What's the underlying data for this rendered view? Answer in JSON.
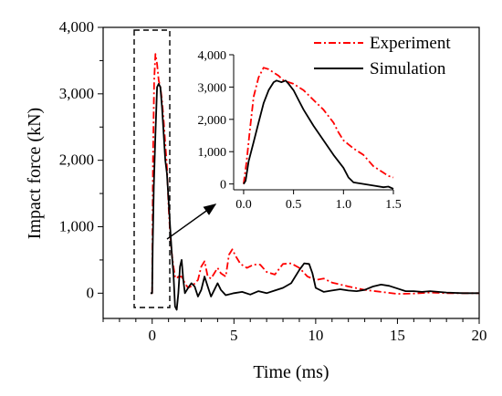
{
  "chart_data": [
    {
      "type": "line",
      "xlabel": "Time (ms)",
      "ylabel": "Impact force (kN)",
      "xlim": [
        -3,
        20
      ],
      "ylim": [
        -380,
        4000
      ],
      "x_ticks": [
        0,
        5,
        10,
        15,
        20
      ],
      "x_tick_labels": [
        "0",
        "5",
        "10",
        "15",
        "20"
      ],
      "y_ticks": [
        0,
        1000,
        2000,
        3000,
        4000
      ],
      "y_tick_labels": [
        "0",
        "1,000",
        "2,000",
        "3,000",
        "4,000"
      ],
      "grid": false,
      "legend_position": "top-right",
      "series": [
        {
          "name": "Experiment",
          "color": "#ff0000",
          "style": "dash-dot",
          "points": [
            [
              -0.05,
              0
            ],
            [
              0.0,
              0
            ],
            [
              0.05,
              2000
            ],
            [
              0.12,
              3200
            ],
            [
              0.2,
              3600
            ],
            [
              0.3,
              3450
            ],
            [
              0.4,
              3200
            ],
            [
              0.5,
              3100
            ],
            [
              0.6,
              2900
            ],
            [
              0.7,
              2600
            ],
            [
              0.8,
              2250
            ],
            [
              0.9,
              1900
            ],
            [
              1.0,
              1300
            ],
            [
              1.1,
              900
            ],
            [
              1.2,
              600
            ],
            [
              1.3,
              400
            ],
            [
              1.4,
              250
            ],
            [
              1.5,
              220
            ],
            [
              1.6,
              250
            ],
            [
              1.8,
              250
            ],
            [
              2.0,
              150
            ],
            [
              2.2,
              80
            ],
            [
              2.5,
              120
            ],
            [
              2.8,
              200
            ],
            [
              3.0,
              400
            ],
            [
              3.2,
              480
            ],
            [
              3.4,
              250
            ],
            [
              3.6,
              220
            ],
            [
              3.8,
              300
            ],
            [
              4.0,
              380
            ],
            [
              4.2,
              300
            ],
            [
              4.5,
              250
            ],
            [
              4.7,
              580
            ],
            [
              4.9,
              660
            ],
            [
              5.1,
              560
            ],
            [
              5.4,
              440
            ],
            [
              5.8,
              380
            ],
            [
              6.2,
              430
            ],
            [
              6.6,
              430
            ],
            [
              7.0,
              320
            ],
            [
              7.5,
              280
            ],
            [
              8.0,
              440
            ],
            [
              8.5,
              450
            ],
            [
              9.0,
              380
            ],
            [
              9.5,
              250
            ],
            [
              10.0,
              200
            ],
            [
              10.5,
              220
            ],
            [
              11.0,
              160
            ],
            [
              12.0,
              100
            ],
            [
              13.0,
              50
            ],
            [
              14.0,
              20
            ],
            [
              15.0,
              -10
            ],
            [
              16.0,
              -5
            ],
            [
              17.0,
              10
            ],
            [
              18.0,
              0
            ],
            [
              19.0,
              0
            ],
            [
              20.0,
              0
            ]
          ]
        },
        {
          "name": "Simulation",
          "color": "#000000",
          "style": "solid",
          "points": [
            [
              -0.1,
              0
            ],
            [
              0.0,
              0
            ],
            [
              0.03,
              700
            ],
            [
              0.1,
              1600
            ],
            [
              0.2,
              2400
            ],
            [
              0.3,
              3100
            ],
            [
              0.4,
              3150
            ],
            [
              0.5,
              3100
            ],
            [
              0.6,
              2800
            ],
            [
              0.7,
              2400
            ],
            [
              0.8,
              2000
            ],
            [
              0.9,
              1800
            ],
            [
              1.0,
              1400
            ],
            [
              1.1,
              1000
            ],
            [
              1.2,
              600
            ],
            [
              1.3,
              300
            ],
            [
              1.35,
              50
            ],
            [
              1.4,
              -200
            ],
            [
              1.5,
              -250
            ],
            [
              1.6,
              0
            ],
            [
              1.7,
              400
            ],
            [
              1.8,
              500
            ],
            [
              1.9,
              200
            ],
            [
              2.0,
              0
            ],
            [
              2.2,
              80
            ],
            [
              2.4,
              150
            ],
            [
              2.6,
              100
            ],
            [
              2.8,
              -50
            ],
            [
              3.0,
              50
            ],
            [
              3.2,
              250
            ],
            [
              3.4,
              100
            ],
            [
              3.6,
              -50
            ],
            [
              3.8,
              50
            ],
            [
              4.0,
              150
            ],
            [
              4.2,
              50
            ],
            [
              4.5,
              -30
            ],
            [
              5.0,
              0
            ],
            [
              5.5,
              20
            ],
            [
              6.0,
              -20
            ],
            [
              6.5,
              30
            ],
            [
              7.0,
              0
            ],
            [
              7.5,
              40
            ],
            [
              8.0,
              80
            ],
            [
              8.5,
              150
            ],
            [
              9.0,
              350
            ],
            [
              9.3,
              450
            ],
            [
              9.6,
              440
            ],
            [
              9.8,
              300
            ],
            [
              10.0,
              80
            ],
            [
              10.5,
              20
            ],
            [
              11.0,
              40
            ],
            [
              11.5,
              60
            ],
            [
              12.0,
              40
            ],
            [
              12.5,
              30
            ],
            [
              13.0,
              50
            ],
            [
              13.5,
              100
            ],
            [
              14.0,
              130
            ],
            [
              14.5,
              110
            ],
            [
              15.0,
              70
            ],
            [
              15.5,
              30
            ],
            [
              16.0,
              30
            ],
            [
              16.5,
              20
            ],
            [
              17.0,
              30
            ],
            [
              18.0,
              10
            ],
            [
              19.0,
              0
            ],
            [
              20.0,
              0
            ]
          ]
        }
      ]
    },
    {
      "type": "line",
      "xlim": [
        -0.1,
        1.5
      ],
      "ylim": [
        -180,
        4000
      ],
      "x_ticks": [
        0,
        0.5,
        1,
        1.5
      ],
      "x_tick_labels": [
        "0.0",
        "0.5",
        "1.0",
        "1.5"
      ],
      "y_ticks": [
        0,
        1000,
        2000,
        3000,
        4000
      ],
      "y_tick_labels": [
        "0",
        "1,000",
        "2,000",
        "3,000",
        "4,000"
      ],
      "series": [
        {
          "name": "Experiment",
          "color": "#ff0000",
          "style": "dash-dot",
          "points": [
            [
              0.0,
              0
            ],
            [
              0.03,
              700
            ],
            [
              0.06,
              1600
            ],
            [
              0.1,
              2700
            ],
            [
              0.15,
              3300
            ],
            [
              0.2,
              3600
            ],
            [
              0.25,
              3550
            ],
            [
              0.3,
              3450
            ],
            [
              0.35,
              3350
            ],
            [
              0.4,
              3200
            ],
            [
              0.5,
              3100
            ],
            [
              0.6,
              2900
            ],
            [
              0.7,
              2600
            ],
            [
              0.8,
              2300
            ],
            [
              0.9,
              1900
            ],
            [
              0.95,
              1600
            ],
            [
              1.0,
              1350
            ],
            [
              1.1,
              1100
            ],
            [
              1.2,
              900
            ],
            [
              1.3,
              550
            ],
            [
              1.4,
              350
            ],
            [
              1.45,
              250
            ],
            [
              1.5,
              200
            ]
          ]
        },
        {
          "name": "Simulation",
          "color": "#000000",
          "style": "solid",
          "points": [
            [
              0.0,
              0
            ],
            [
              0.02,
              100
            ],
            [
              0.05,
              700
            ],
            [
              0.1,
              1300
            ],
            [
              0.15,
              1900
            ],
            [
              0.2,
              2500
            ],
            [
              0.25,
              2900
            ],
            [
              0.3,
              3150
            ],
            [
              0.33,
              3200
            ],
            [
              0.38,
              3150
            ],
            [
              0.42,
              3200
            ],
            [
              0.45,
              3100
            ],
            [
              0.5,
              2900
            ],
            [
              0.55,
              2600
            ],
            [
              0.6,
              2300
            ],
            [
              0.7,
              1800
            ],
            [
              0.8,
              1350
            ],
            [
              0.9,
              900
            ],
            [
              1.0,
              500
            ],
            [
              1.05,
              200
            ],
            [
              1.1,
              50
            ],
            [
              1.2,
              0
            ],
            [
              1.3,
              -50
            ],
            [
              1.4,
              -100
            ],
            [
              1.45,
              -80
            ],
            [
              1.5,
              -150
            ]
          ]
        }
      ]
    }
  ]
}
